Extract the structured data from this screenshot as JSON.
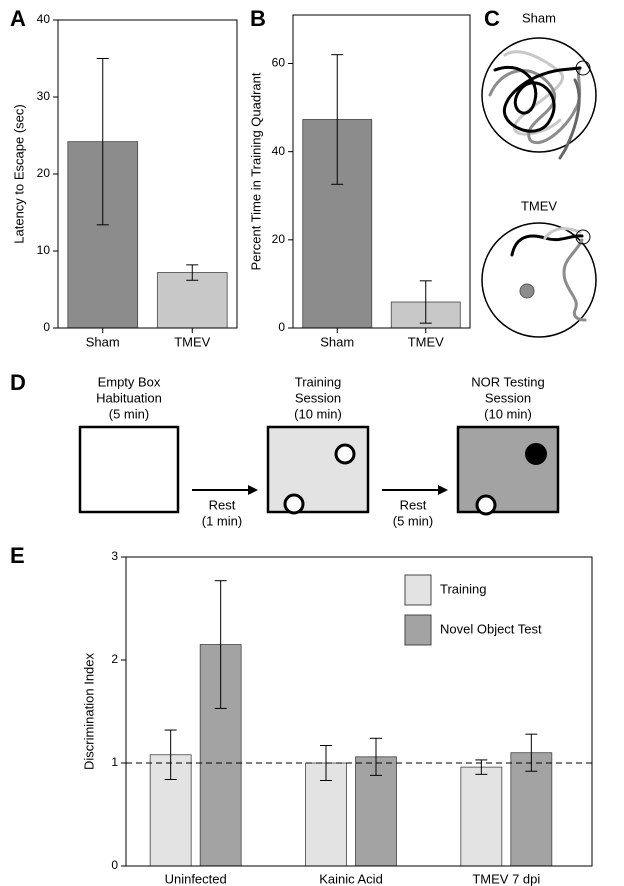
{
  "chart_data": [
    {
      "type": "bar",
      "panel": "A",
      "categories": [
        "Sham",
        "TMEV"
      ],
      "values": [
        24.2,
        7.2
      ],
      "errors": [
        10.8,
        1.0
      ],
      "colors": [
        "#8c8c8c",
        "#c8c8c8"
      ],
      "ylabel": "Latency to Escape (sec)",
      "ylim": [
        0,
        40
      ],
      "yticks": [
        0,
        10,
        20,
        30,
        40
      ]
    },
    {
      "type": "bar",
      "panel": "B",
      "categories": [
        "Sham",
        "TMEV"
      ],
      "values": [
        47.3,
        5.9
      ],
      "errors": [
        14.7,
        4.8
      ],
      "colors": [
        "#8c8c8c",
        "#c8c8c8"
      ],
      "ylabel": "Percent Time in Training Quadrant",
      "ylim": [
        0,
        71
      ],
      "yticks": [
        0,
        20,
        40,
        60
      ]
    },
    {
      "type": "grouped_bar",
      "panel": "E",
      "categories": [
        "Uninfected",
        "Kainic Acid",
        "TMEV 7 dpi"
      ],
      "series": [
        {
          "name": "Training",
          "color": "#e3e3e3",
          "values": [
            1.08,
            1.0,
            0.96
          ],
          "errors": [
            0.24,
            0.17,
            0.07
          ]
        },
        {
          "name": "Novel Object Test",
          "color": "#a3a3a3",
          "values": [
            2.15,
            1.06,
            1.1
          ],
          "errors": [
            0.62,
            0.18,
            0.18
          ]
        }
      ],
      "ylabel": "Discrimination Index",
      "ylim": [
        0,
        3
      ],
      "yticks": [
        0,
        1,
        2,
        3
      ],
      "reference_line": 1
    }
  ],
  "trajectories": {
    "panel": "C",
    "labels": [
      "Sham",
      "TMEV"
    ]
  },
  "protocol": {
    "panel": "D",
    "steps": [
      [
        "Empty Box",
        "Habituation",
        "(5 min)"
      ],
      [
        "Training",
        "Session",
        "(10 min)"
      ],
      [
        "NOR Testing",
        "Session",
        "(10 min)"
      ]
    ],
    "rests": [
      [
        "Rest",
        "(1 min)"
      ],
      [
        "Rest",
        "(5 min)"
      ]
    ]
  }
}
